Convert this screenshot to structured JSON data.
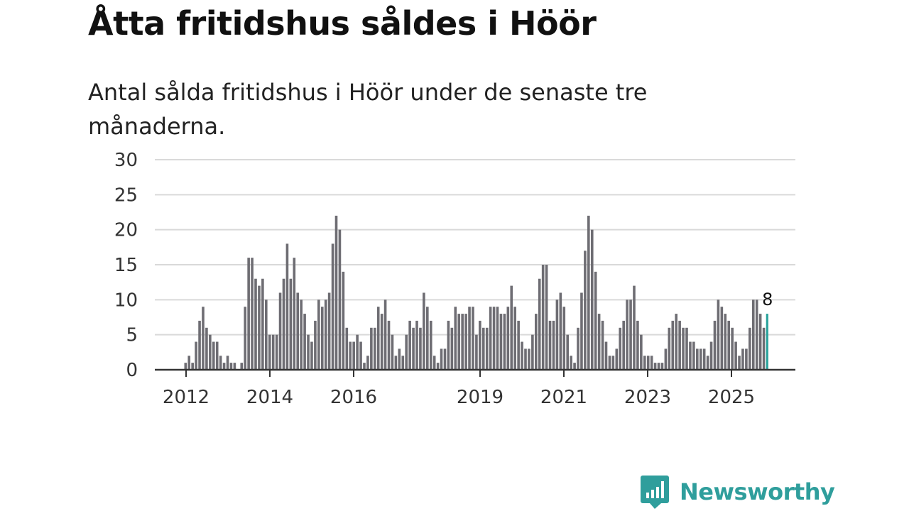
{
  "title": "Åtta fritidshus såldes i Höör",
  "subtitle": "Antal sålda fritidshus i Höör under de senaste tre månaderna.",
  "brand": {
    "name": "Newsworthy",
    "icon": "newsworthy-logo-icon",
    "color": "#2f9e9c"
  },
  "chart_data": {
    "type": "bar",
    "title": "Åtta fritidshus såldes i Höör",
    "xlabel": "",
    "ylabel": "",
    "ylim": [
      0,
      30
    ],
    "yticks": [
      0,
      5,
      10,
      15,
      20,
      25,
      30
    ],
    "xticks": [
      "2012",
      "2014",
      "2016",
      "2019",
      "2021",
      "2023",
      "2025"
    ],
    "grid": true,
    "colors": {
      "bar": "#6e6d73",
      "highlight": "#2aa39c",
      "grid": "#d9d9d9",
      "axis": "#333333"
    },
    "values": [
      1,
      2,
      1,
      4,
      7,
      9,
      6,
      5,
      4,
      4,
      2,
      1,
      2,
      1,
      1,
      0,
      1,
      9,
      16,
      16,
      13,
      12,
      13,
      10,
      5,
      5,
      5,
      11,
      13,
      18,
      13,
      16,
      11,
      10,
      8,
      5,
      4,
      7,
      10,
      9,
      10,
      11,
      18,
      22,
      20,
      14,
      6,
      4,
      4,
      5,
      4,
      1,
      2,
      6,
      6,
      9,
      8,
      10,
      7,
      5,
      2,
      3,
      2,
      5,
      7,
      6,
      7,
      6,
      11,
      9,
      7,
      2,
      1,
      3,
      3,
      7,
      6,
      9,
      8,
      8,
      8,
      9,
      9,
      5,
      7,
      6,
      6,
      9,
      9,
      9,
      8,
      8,
      9,
      12,
      9,
      7,
      4,
      3,
      3,
      5,
      8,
      13,
      15,
      15,
      7,
      7,
      10,
      11,
      9,
      5,
      2,
      1,
      6,
      11,
      17,
      22,
      20,
      14,
      8,
      7,
      4,
      2,
      2,
      3,
      6,
      7,
      10,
      10,
      12,
      7,
      5,
      2,
      2,
      2,
      1,
      1,
      1,
      3,
      6,
      7,
      8,
      7,
      6,
      6,
      4,
      4,
      3,
      3,
      3,
      2,
      4,
      7,
      10,
      9,
      8,
      7,
      6,
      4,
      2,
      3,
      3,
      6,
      10,
      10,
      8,
      6,
      8
    ],
    "highlight_label": "8"
  }
}
